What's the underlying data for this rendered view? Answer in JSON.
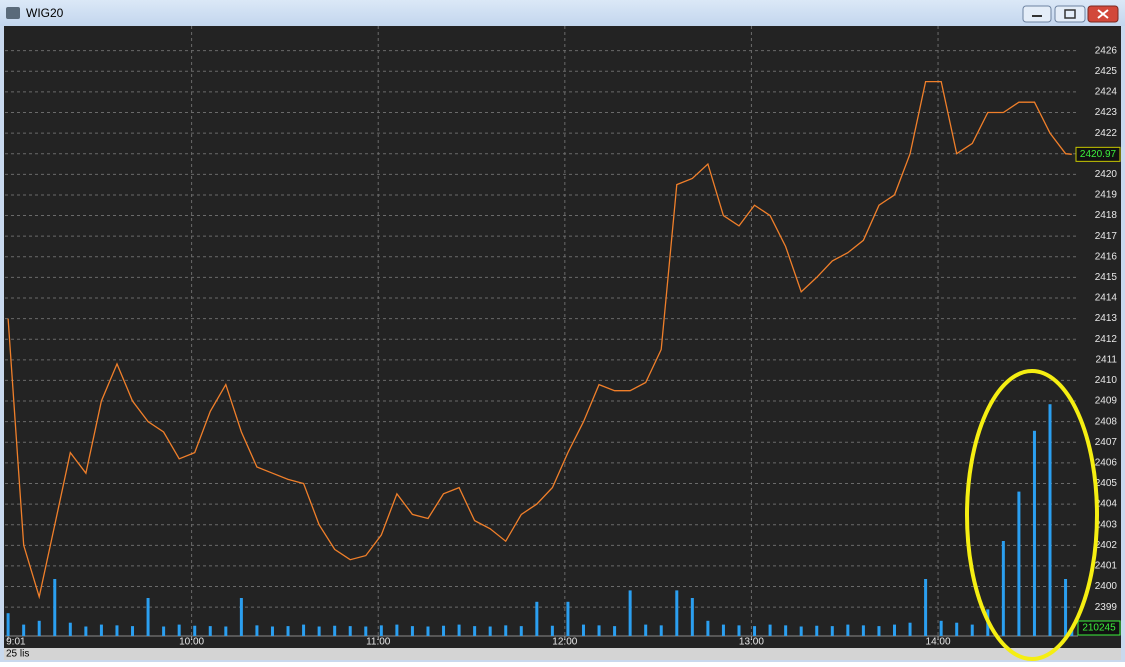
{
  "window": {
    "title": "WIG20"
  },
  "chart_data": {
    "type": "line",
    "date_label": "25 lis",
    "x": [
      541,
      546,
      551,
      556,
      561,
      566,
      571,
      576,
      581,
      586,
      591,
      596,
      601,
      606,
      611,
      616,
      621,
      626,
      631,
      636,
      641,
      646,
      651,
      656,
      661,
      666,
      671,
      676,
      681,
      686,
      691,
      696,
      701,
      706,
      711,
      716,
      721,
      726,
      731,
      736,
      741,
      746,
      751,
      756,
      761,
      766,
      771,
      776,
      781,
      786,
      791,
      796,
      801,
      806,
      811,
      816,
      821,
      826,
      831,
      836,
      841,
      846,
      851,
      856,
      861,
      866,
      871,
      876,
      881,
      883
    ],
    "values": [
      2413,
      2402,
      2399.5,
      2403,
      2406.5,
      2405.5,
      2409,
      2410.8,
      2409,
      2408,
      2407.5,
      2406.2,
      2406.5,
      2408.5,
      2409.8,
      2407.5,
      2405.8,
      2405.5,
      2405.2,
      2405,
      2403,
      2401.8,
      2401.3,
      2401.5,
      2402.5,
      2404.5,
      2403.5,
      2403.3,
      2404.5,
      2404.8,
      2403.2,
      2402.8,
      2402.2,
      2403.5,
      2404,
      2404.8,
      2406.5,
      2408,
      2409.8,
      2409.5,
      2409.5,
      2409.9,
      2411.5,
      2419.5,
      2419.8,
      2420.5,
      2418,
      2417.5,
      2418.5,
      2418,
      2416.5,
      2414.3,
      2415,
      2415.8,
      2416.2,
      2416.8,
      2418.5,
      2419,
      2421,
      2424.5,
      2424.5,
      2421,
      2421.5,
      2423,
      2423,
      2423.5,
      2423.5,
      2422,
      2421,
      2420.97
    ],
    "color": "#f07f2a",
    "volume": [
      600000,
      300000,
      400000,
      1500000,
      350000,
      250000,
      300000,
      280000,
      260000,
      1000000,
      250000,
      300000,
      270000,
      260000,
      250000,
      1000000,
      280000,
      250000,
      260000,
      300000,
      250000,
      270000,
      260000,
      250000,
      280000,
      300000,
      260000,
      250000,
      270000,
      300000,
      260000,
      250000,
      280000,
      260000,
      900000,
      270000,
      900000,
      300000,
      280000,
      260000,
      1200000,
      300000,
      280000,
      1200000,
      1000000,
      400000,
      300000,
      280000,
      260000,
      300000,
      280000,
      250000,
      270000,
      260000,
      300000,
      280000,
      260000,
      300000,
      350000,
      1500000,
      400000,
      350000,
      300000,
      700000,
      2500000,
      3800000,
      5400000,
      6100000,
      1500000,
      210245
    ],
    "volume_color": "#2b9ff0",
    "xlim": [
      540,
      885
    ],
    "xticks": [
      {
        "value": 541,
        "label": "9:01"
      },
      {
        "value": 600,
        "label": "10:00"
      },
      {
        "value": 660,
        "label": "11:00"
      },
      {
        "value": 720,
        "label": "12:00"
      },
      {
        "value": 780,
        "label": "13:00"
      },
      {
        "value": 840,
        "label": "14:00"
      }
    ],
    "ylim": [
      2397.6,
      2427.1
    ],
    "yticks": [
      2399,
      2400,
      2401,
      2402,
      2403,
      2404,
      2405,
      2406,
      2407,
      2408,
      2409,
      2410,
      2411,
      2412,
      2413,
      2414,
      2415,
      2416,
      2417,
      2418,
      2419,
      2420,
      2421,
      2422,
      2423,
      2424,
      2425,
      2426
    ],
    "y2lim": [
      0,
      16000000
    ],
    "grid": true
  }
}
